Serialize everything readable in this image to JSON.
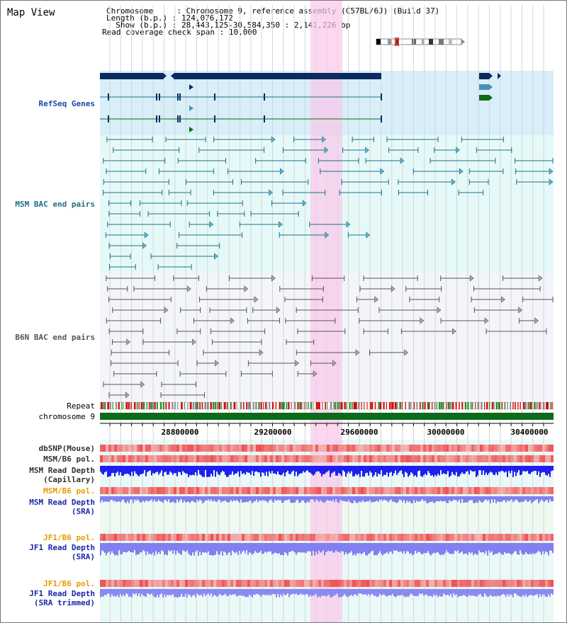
{
  "header": {
    "title": "Map View",
    "info": [
      {
        "label": "Chromosome     ",
        "value": ": Chromosome 9, reference assembly (C57BL/6J) (Build 37)"
      },
      {
        "label": "Length (b.p.) ",
        "value": ": 124,076,172"
      },
      {
        "label": "  Show (b.p.) ",
        "value": ": 28,443,125-30,584,350 : 2,141,226 bp"
      },
      {
        "label": "Read coverage check span ",
        "value": ": 10,000"
      }
    ]
  },
  "tracks": {
    "refseq": "RefSeq Genes",
    "msm_bac": "MSM BAC end pairs",
    "b6n_bac": "B6N BAC end pairs",
    "repeat": "Repeat",
    "chromosome": "chromosome 9",
    "dbsnp": "dbSNP(Mouse)",
    "msm_b6_pol": "MSM/B6 pol.",
    "msm_depth_cap": "MSM Read Depth\n(Capillary)",
    "msm_b6_pol2": "MSM/B6 pol.",
    "msm_depth_sra": "MSM Read Depth\n(SRA)",
    "jf1_b6_pol": "JF1/B6 pol.",
    "jf1_depth_sra": "JF1 Read Depth\n(SRA)",
    "jf1_b6_pol2": "JF1/B6 pol.",
    "jf1_depth_trim": "JF1 Read Depth\n(SRA trimmed)"
  },
  "axis": {
    "ticks": [
      "28800000",
      "29200000",
      "29600000",
      "30000000",
      "30400000"
    ]
  },
  "colors": {
    "refseq_bg": "#d8eef9",
    "msm_bg": "#e6f9f9",
    "b6n_bg": "#f3f5fb",
    "highlight": "#f9d8f0",
    "refseq_dark": "#0b2a5e",
    "msm_line": "#1f6f86",
    "b6n_line": "#555555",
    "chrom_green": "#0b6b1a",
    "snp_red": "#f05555",
    "depth_blue": "#1f1ff0",
    "sra_blue": "#8080f0",
    "orange": "#e79a00"
  }
}
